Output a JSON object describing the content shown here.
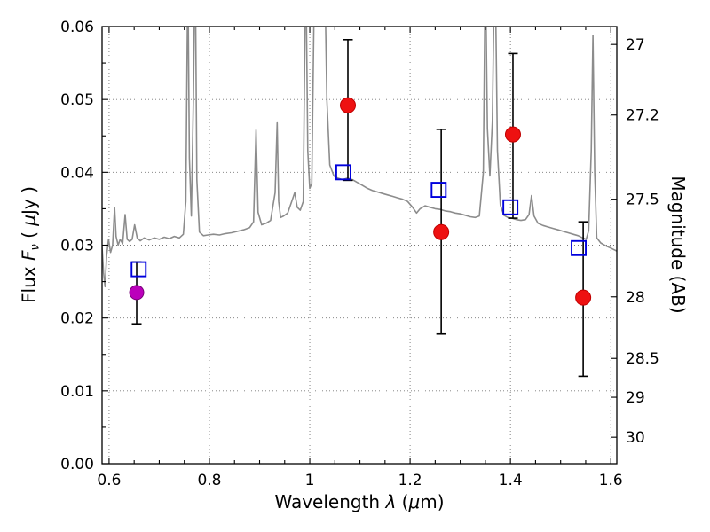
{
  "figure": {
    "background": "#ffffff",
    "axis_color": "#000000",
    "grid_color": "#777777",
    "grid_style": "dotted"
  },
  "axes": {
    "xlabel": {
      "pre": "Wavelength  ",
      "symbol": "λ",
      "open": " (",
      "mu": "μ",
      "close": "m)"
    },
    "ylabel_left": {
      "pre": "Flux  ",
      "symbol": "F",
      "sub": "ν",
      "open": " ( ",
      "mu": "μ",
      "close": "Jy )"
    },
    "ylabel_right": "Magnitude (AB)"
  },
  "chart_data": {
    "type": "line+scatter",
    "title": "",
    "xlabel": "Wavelength λ (μm)",
    "ylabel": "Flux Fν (μJy)",
    "ylabel_right": "Magnitude (AB)",
    "xlim": [
      0.586,
      1.612
    ],
    "ylim": [
      0.0,
      0.06
    ],
    "grid": true,
    "legend": "none",
    "x_ticks": [
      {
        "v": 0.6,
        "label": "0.6"
      },
      {
        "v": 0.8,
        "label": "0.8"
      },
      {
        "v": 1.0,
        "label": "1"
      },
      {
        "v": 1.2,
        "label": "1.2"
      },
      {
        "v": 1.4,
        "label": "1.4"
      },
      {
        "v": 1.6,
        "label": "1.6"
      }
    ],
    "y_ticks": [
      {
        "v": 0.0,
        "label": "0.00"
      },
      {
        "v": 0.01,
        "label": "0.01"
      },
      {
        "v": 0.02,
        "label": "0.02"
      },
      {
        "v": 0.03,
        "label": "0.03"
      },
      {
        "v": 0.04,
        "label": "0.04"
      },
      {
        "v": 0.05,
        "label": "0.05"
      },
      {
        "v": 0.06,
        "label": "0.06"
      }
    ],
    "right_axis": {
      "zeropoint_ab": 23.9,
      "ticks": [
        {
          "v": 27.0,
          "label": "27"
        },
        {
          "v": 27.2,
          "label": "27.2"
        },
        {
          "v": 27.5,
          "label": "27.5"
        },
        {
          "v": 28.0,
          "label": "28"
        },
        {
          "v": 28.5,
          "label": "28.5"
        },
        {
          "v": 29.0,
          "label": "29"
        },
        {
          "v": 30.0,
          "label": "30"
        }
      ]
    },
    "x_minor_step": 0.05,
    "y_minor_step": 0.005,
    "series": [
      {
        "name": "model-spectrum",
        "type": "line",
        "color": "#8c8c8c",
        "width": 1.6,
        "x": [
          0.586,
          0.589,
          0.592,
          0.595,
          0.599,
          0.603,
          0.607,
          0.611,
          0.614,
          0.618,
          0.622,
          0.627,
          0.632,
          0.636,
          0.641,
          0.646,
          0.651,
          0.656,
          0.662,
          0.67,
          0.68,
          0.69,
          0.7,
          0.71,
          0.72,
          0.73,
          0.74,
          0.748,
          0.753,
          0.757,
          0.76,
          0.764,
          0.768,
          0.7715,
          0.775,
          0.78,
          0.788,
          0.797,
          0.808,
          0.82,
          0.832,
          0.844,
          0.856,
          0.868,
          0.88,
          0.888,
          0.893,
          0.897,
          0.904,
          0.913,
          0.922,
          0.931,
          0.935,
          0.938,
          0.942,
          0.948,
          0.956,
          0.964,
          0.97,
          0.975,
          0.981,
          0.987,
          0.992,
          0.996,
          1.0,
          1.004,
          1.008,
          1.012,
          1.02,
          1.028,
          1.034,
          1.04,
          1.048,
          1.056,
          1.065,
          1.075,
          1.085,
          1.095,
          1.105,
          1.115,
          1.125,
          1.135,
          1.145,
          1.155,
          1.165,
          1.175,
          1.185,
          1.195,
          1.205,
          1.213,
          1.22,
          1.23,
          1.24,
          1.25,
          1.26,
          1.27,
          1.28,
          1.29,
          1.3,
          1.31,
          1.32,
          1.33,
          1.338,
          1.346,
          1.35,
          1.354,
          1.359,
          1.364,
          1.369,
          1.374,
          1.38,
          1.387,
          1.395,
          1.403,
          1.412,
          1.421,
          1.43,
          1.437,
          1.442,
          1.447,
          1.455,
          1.465,
          1.475,
          1.485,
          1.495,
          1.505,
          1.515,
          1.525,
          1.535,
          1.544,
          1.551,
          1.556,
          1.561,
          1.5645,
          1.568,
          1.572,
          1.58,
          1.59,
          1.6,
          1.612
        ],
        "y": [
          0.0298,
          0.0262,
          0.0243,
          0.0285,
          0.0308,
          0.029,
          0.03,
          0.0352,
          0.0312,
          0.03,
          0.0308,
          0.0302,
          0.0342,
          0.0308,
          0.0305,
          0.0308,
          0.0328,
          0.031,
          0.0306,
          0.031,
          0.0307,
          0.031,
          0.0308,
          0.0311,
          0.0309,
          0.0312,
          0.031,
          0.0315,
          0.036,
          0.068,
          0.042,
          0.034,
          0.05,
          0.071,
          0.039,
          0.0318,
          0.0313,
          0.0314,
          0.0315,
          0.0314,
          0.0316,
          0.0317,
          0.0319,
          0.0321,
          0.0324,
          0.0332,
          0.0458,
          0.0345,
          0.0328,
          0.033,
          0.0334,
          0.0372,
          0.0468,
          0.036,
          0.0338,
          0.034,
          0.0344,
          0.036,
          0.0372,
          0.0352,
          0.0348,
          0.036,
          0.07,
          0.043,
          0.0378,
          0.0385,
          0.06,
          0.082,
          0.09,
          0.075,
          0.05,
          0.041,
          0.0395,
          0.0392,
          0.039,
          0.0392,
          0.039,
          0.0386,
          0.0382,
          0.0378,
          0.0375,
          0.0373,
          0.0371,
          0.0369,
          0.0367,
          0.0365,
          0.0363,
          0.036,
          0.0352,
          0.0344,
          0.035,
          0.0354,
          0.0352,
          0.035,
          0.0349,
          0.0347,
          0.0346,
          0.0344,
          0.0343,
          0.0341,
          0.0339,
          0.0338,
          0.034,
          0.04,
          0.069,
          0.046,
          0.0395,
          0.047,
          0.072,
          0.043,
          0.0355,
          0.0341,
          0.0338,
          0.0337,
          0.0335,
          0.0334,
          0.0335,
          0.0342,
          0.0368,
          0.034,
          0.033,
          0.0327,
          0.0325,
          0.0323,
          0.0321,
          0.0319,
          0.0317,
          0.0315,
          0.0313,
          0.031,
          0.0308,
          0.032,
          0.043,
          0.0588,
          0.04,
          0.031,
          0.0303,
          0.0299,
          0.0296,
          0.0292
        ]
      },
      {
        "name": "observed-photometry",
        "type": "scatter",
        "marker": "circle",
        "color": "#ee1111",
        "edge": "#c00000",
        "size": 17,
        "error_color": "#000000",
        "points": [
          {
            "x": 1.076,
            "y": 0.0492,
            "lo": 0.0389,
            "hi": 0.0582
          },
          {
            "x": 1.262,
            "y": 0.0318,
            "lo": 0.0178,
            "hi": 0.0459
          },
          {
            "x": 1.405,
            "y": 0.0452,
            "lo": 0.0337,
            "hi": 0.0563
          },
          {
            "x": 1.545,
            "y": 0.0228,
            "lo": 0.012,
            "hi": 0.0332
          }
        ]
      },
      {
        "name": "detection-band",
        "type": "scatter",
        "marker": "circle",
        "color": "#bb00bb",
        "edge": "#770077",
        "size": 16,
        "error_color": "#000000",
        "points": [
          {
            "x": 0.655,
            "y": 0.0235,
            "lo": 0.0192,
            "hi": 0.0277
          }
        ]
      },
      {
        "name": "model-photometry",
        "type": "scatter",
        "marker": "square-open",
        "color": "#0000dd",
        "size": 16,
        "error_color": "#000000",
        "points": [
          {
            "x": 0.659,
            "y": 0.0267
          },
          {
            "x": 1.067,
            "y": 0.04
          },
          {
            "x": 1.257,
            "y": 0.0376
          },
          {
            "x": 1.4,
            "y": 0.0352
          },
          {
            "x": 1.536,
            "y": 0.0296
          }
        ]
      }
    ]
  }
}
